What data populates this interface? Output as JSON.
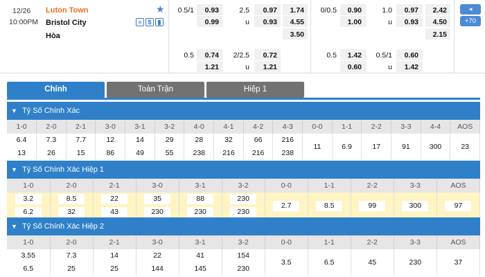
{
  "match": {
    "date": "12/26",
    "time": "10:00PM",
    "home": "Luton Town",
    "away": "Bristol City",
    "draw": "Hòa",
    "icons": [
      "≡",
      "$",
      "▮"
    ],
    "ft_handicap": {
      "line": "0.5/1",
      "home": "0.93",
      "away": "0.99"
    },
    "ft_overunder": {
      "line": "2.5",
      "over": "0.97",
      "u_label": "u",
      "under": "0.93"
    },
    "ft_1x2": {
      "home": "1.74",
      "away": "4.55",
      "draw": "3.50"
    },
    "h1_handicap": {
      "line": "0/0.5",
      "home": "0.90",
      "away": "1.00"
    },
    "h1_overunder": {
      "line": "1.0",
      "over": "0.97",
      "u_label": "u",
      "under": "0.93"
    },
    "h1_1x2": {
      "home": "2.42",
      "away": "4.50",
      "draw": "2.15"
    },
    "ft_handicap2": {
      "line": "0.5",
      "home": "0.74",
      "away": "1.21"
    },
    "ft_overunder2": {
      "line": "2/2.5",
      "over": "0.72",
      "u_label": "u",
      "under": "1.21"
    },
    "h1_handicap2": {
      "line": "0.5",
      "home": "1.42",
      "away": "0.60"
    },
    "h1_overunder2": {
      "line": "0.5/1",
      "over": "0.60",
      "u_label": "u",
      "under": "1.42"
    },
    "side_buttons": [
      "◂",
      "+70"
    ]
  },
  "tabs": [
    "Chính",
    "Toàn Trận",
    "Hiệp 1"
  ],
  "sections": [
    {
      "title": "Tỷ Số Chính Xác",
      "headers": [
        "1-0",
        "2-0",
        "2-1",
        "3-0",
        "3-1",
        "3-2",
        "4-0",
        "4-1",
        "4-2",
        "4-3",
        "0-0",
        "1-1",
        "2-2",
        "3-3",
        "4-4",
        "AOS"
      ],
      "top": [
        "6.4",
        "7.3",
        "7.7",
        "12",
        "14",
        "29",
        "28",
        "32",
        "66",
        "216",
        "11",
        "6.9",
        "17",
        "91",
        "300",
        "23"
      ],
      "bottom": [
        "13",
        "26",
        "15",
        "86",
        "49",
        "55",
        "238",
        "216",
        "216",
        "238"
      ]
    },
    {
      "title": "Tỷ Số Chính Xác Hiệp 1",
      "headers": [
        "1-0",
        "2-0",
        "2-1",
        "3-0",
        "3-1",
        "3-2",
        "0-0",
        "1-1",
        "2-2",
        "3-3",
        "AOS"
      ],
      "top": [
        "3.2",
        "8.5",
        "22",
        "35",
        "88",
        "230",
        "2.7",
        "8.5",
        "99",
        "300",
        "97"
      ],
      "bottom": [
        "6.2",
        "32",
        "43",
        "230",
        "230",
        "230"
      ]
    },
    {
      "title": "Tỷ Số Chính Xác Hiệp 2",
      "headers": [
        "1-0",
        "2-0",
        "2-1",
        "3-0",
        "3-1",
        "3-2",
        "0-0",
        "1-1",
        "2-2",
        "3-3",
        "AOS"
      ],
      "top": [
        "3.55",
        "7.3",
        "14",
        "22",
        "41",
        "154",
        "3.5",
        "6.5",
        "45",
        "230",
        "37"
      ],
      "bottom": [
        "6.5",
        "25",
        "25",
        "144",
        "145",
        "230"
      ]
    }
  ]
}
